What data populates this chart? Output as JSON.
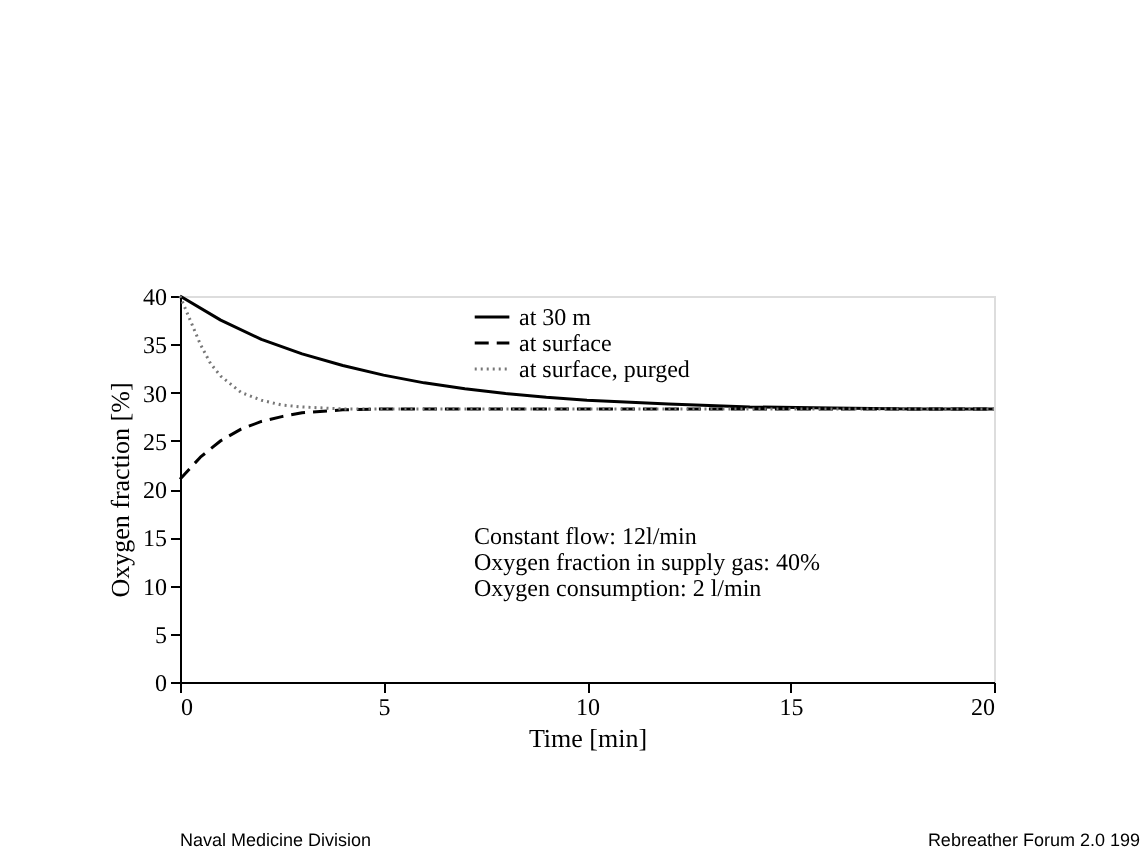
{
  "chart_data": {
    "type": "line",
    "xlabel": "Time [min]",
    "ylabel": "Oxygen fraction [%]",
    "xlim": [
      0,
      20
    ],
    "xticks": [
      0,
      5,
      10,
      15,
      20
    ],
    "ylim": [
      0,
      40
    ],
    "yticks": [
      0,
      5,
      10,
      15,
      20,
      25,
      30,
      35,
      40
    ],
    "grid": false,
    "legend": "top",
    "marker": "none",
    "series": [
      {
        "name": "at 30 m",
        "color": "#000000",
        "line_style": "solid",
        "x": [
          0,
          1,
          2,
          3,
          4,
          5,
          6,
          7,
          8,
          9,
          10,
          12,
          14,
          16,
          18,
          20
        ],
        "values": [
          40,
          37.5,
          35.5,
          34,
          32.8,
          31.8,
          31,
          30.4,
          29.9,
          29.5,
          29.2,
          28.8,
          28.5,
          28.4,
          28.3,
          28.3
        ]
      },
      {
        "name": "at surface",
        "color": "#000000",
        "line_style": "dashed",
        "x": [
          0,
          0.5,
          1,
          1.5,
          2,
          2.5,
          3,
          4,
          5,
          20
        ],
        "values": [
          21,
          23.3,
          25,
          26.2,
          27,
          27.5,
          27.9,
          28.2,
          28.3,
          28.3
        ]
      },
      {
        "name": "at surface, purged",
        "color": "#777777",
        "line_style": "dotted",
        "x": [
          0,
          0.25,
          0.5,
          0.75,
          1,
          1.5,
          2,
          2.5,
          3,
          4,
          20
        ],
        "values": [
          40,
          37.5,
          35,
          33,
          31.7,
          30,
          29.2,
          28.7,
          28.5,
          28.3,
          28.3
        ]
      }
    ],
    "annotations": [
      "Constant flow: 12l/min",
      "Oxygen fraction in supply gas: 40%",
      "Oxygen consumption: 2 l/min",
      "Naval Medicine Division",
      "Rebreather Forum 2.0 199"
    ]
  }
}
